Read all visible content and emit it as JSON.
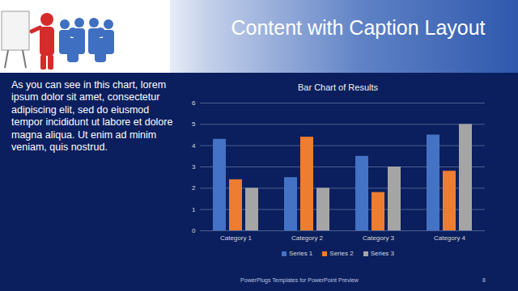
{
  "slide": {
    "title": "Content with Caption Layout",
    "caption": "As you can see in this chart, lorem ipsum dolor sit amet, consectetur adipiscing elit, sed do eiusmod tempor incididunt ut labore et dolore magna aliqua. Ut enim ad minim veniam, quis nostrud.",
    "footer": "PowerPlugs Templates for PowerPoint Preview",
    "page_number": "8"
  },
  "chart_data": {
    "type": "bar",
    "title": "Bar Chart of Results",
    "categories": [
      "Category 1",
      "Category 2",
      "Category 3",
      "Category 4"
    ],
    "series": [
      {
        "name": "Series 1",
        "color": "#4472c4",
        "values": [
          4.3,
          2.5,
          3.5,
          4.5
        ]
      },
      {
        "name": "Series 2",
        "color": "#ed7d31",
        "values": [
          2.4,
          4.4,
          1.8,
          2.8
        ]
      },
      {
        "name": "Series 3",
        "color": "#a5a5a5",
        "values": [
          2,
          2,
          3,
          5
        ]
      }
    ],
    "ylim": [
      0,
      6
    ],
    "yticks": [
      0,
      1,
      2,
      3,
      4,
      5,
      6
    ],
    "grid": true,
    "legend": "bottom"
  }
}
